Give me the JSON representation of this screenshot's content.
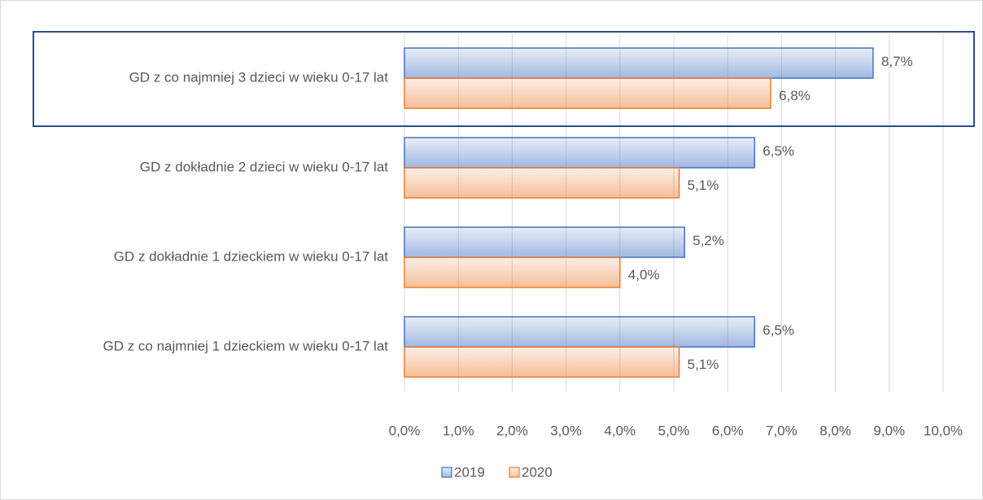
{
  "chart_data": {
    "type": "hbar",
    "categories": [
      "GD z co najmniej 3 dzieci w wieku 0-17 lat",
      "GD z dokładnie 2 dzieci w wieku 0-17 lat",
      "GD z dokładnie 1 dzieckiem w wieku 0-17 lat",
      "GD z co najmniej 1 dzieckiem w wieku 0-17 lat"
    ],
    "series": [
      {
        "name": "2019",
        "color": "#4472c4",
        "values": [
          8.7,
          6.5,
          5.2,
          6.5
        ],
        "value_labels": [
          "8,7%",
          "6,5%",
          "5,2%",
          "6,5%"
        ]
      },
      {
        "name": "2020",
        "color": "#ed7d31",
        "values": [
          6.8,
          5.1,
          4.0,
          5.1
        ],
        "value_labels": [
          "6,8%",
          "5,1%",
          "4,0%",
          "5,1%"
        ]
      }
    ],
    "xlim": [
      0,
      10
    ],
    "xticks": [
      {
        "value": 0,
        "label": "0,0%"
      },
      {
        "value": 1,
        "label": "1,0%"
      },
      {
        "value": 2,
        "label": "2,0%"
      },
      {
        "value": 3,
        "label": "3,0%"
      },
      {
        "value": 4,
        "label": "4,0%"
      },
      {
        "value": 5,
        "label": "5,0%"
      },
      {
        "value": 6,
        "label": "6,0%"
      },
      {
        "value": 7,
        "label": "7,0%"
      },
      {
        "value": 8,
        "label": "8,0%"
      },
      {
        "value": 9,
        "label": "9,0%"
      },
      {
        "value": 10,
        "label": "10,0%"
      }
    ],
    "grid": true,
    "legend": "bottom"
  }
}
